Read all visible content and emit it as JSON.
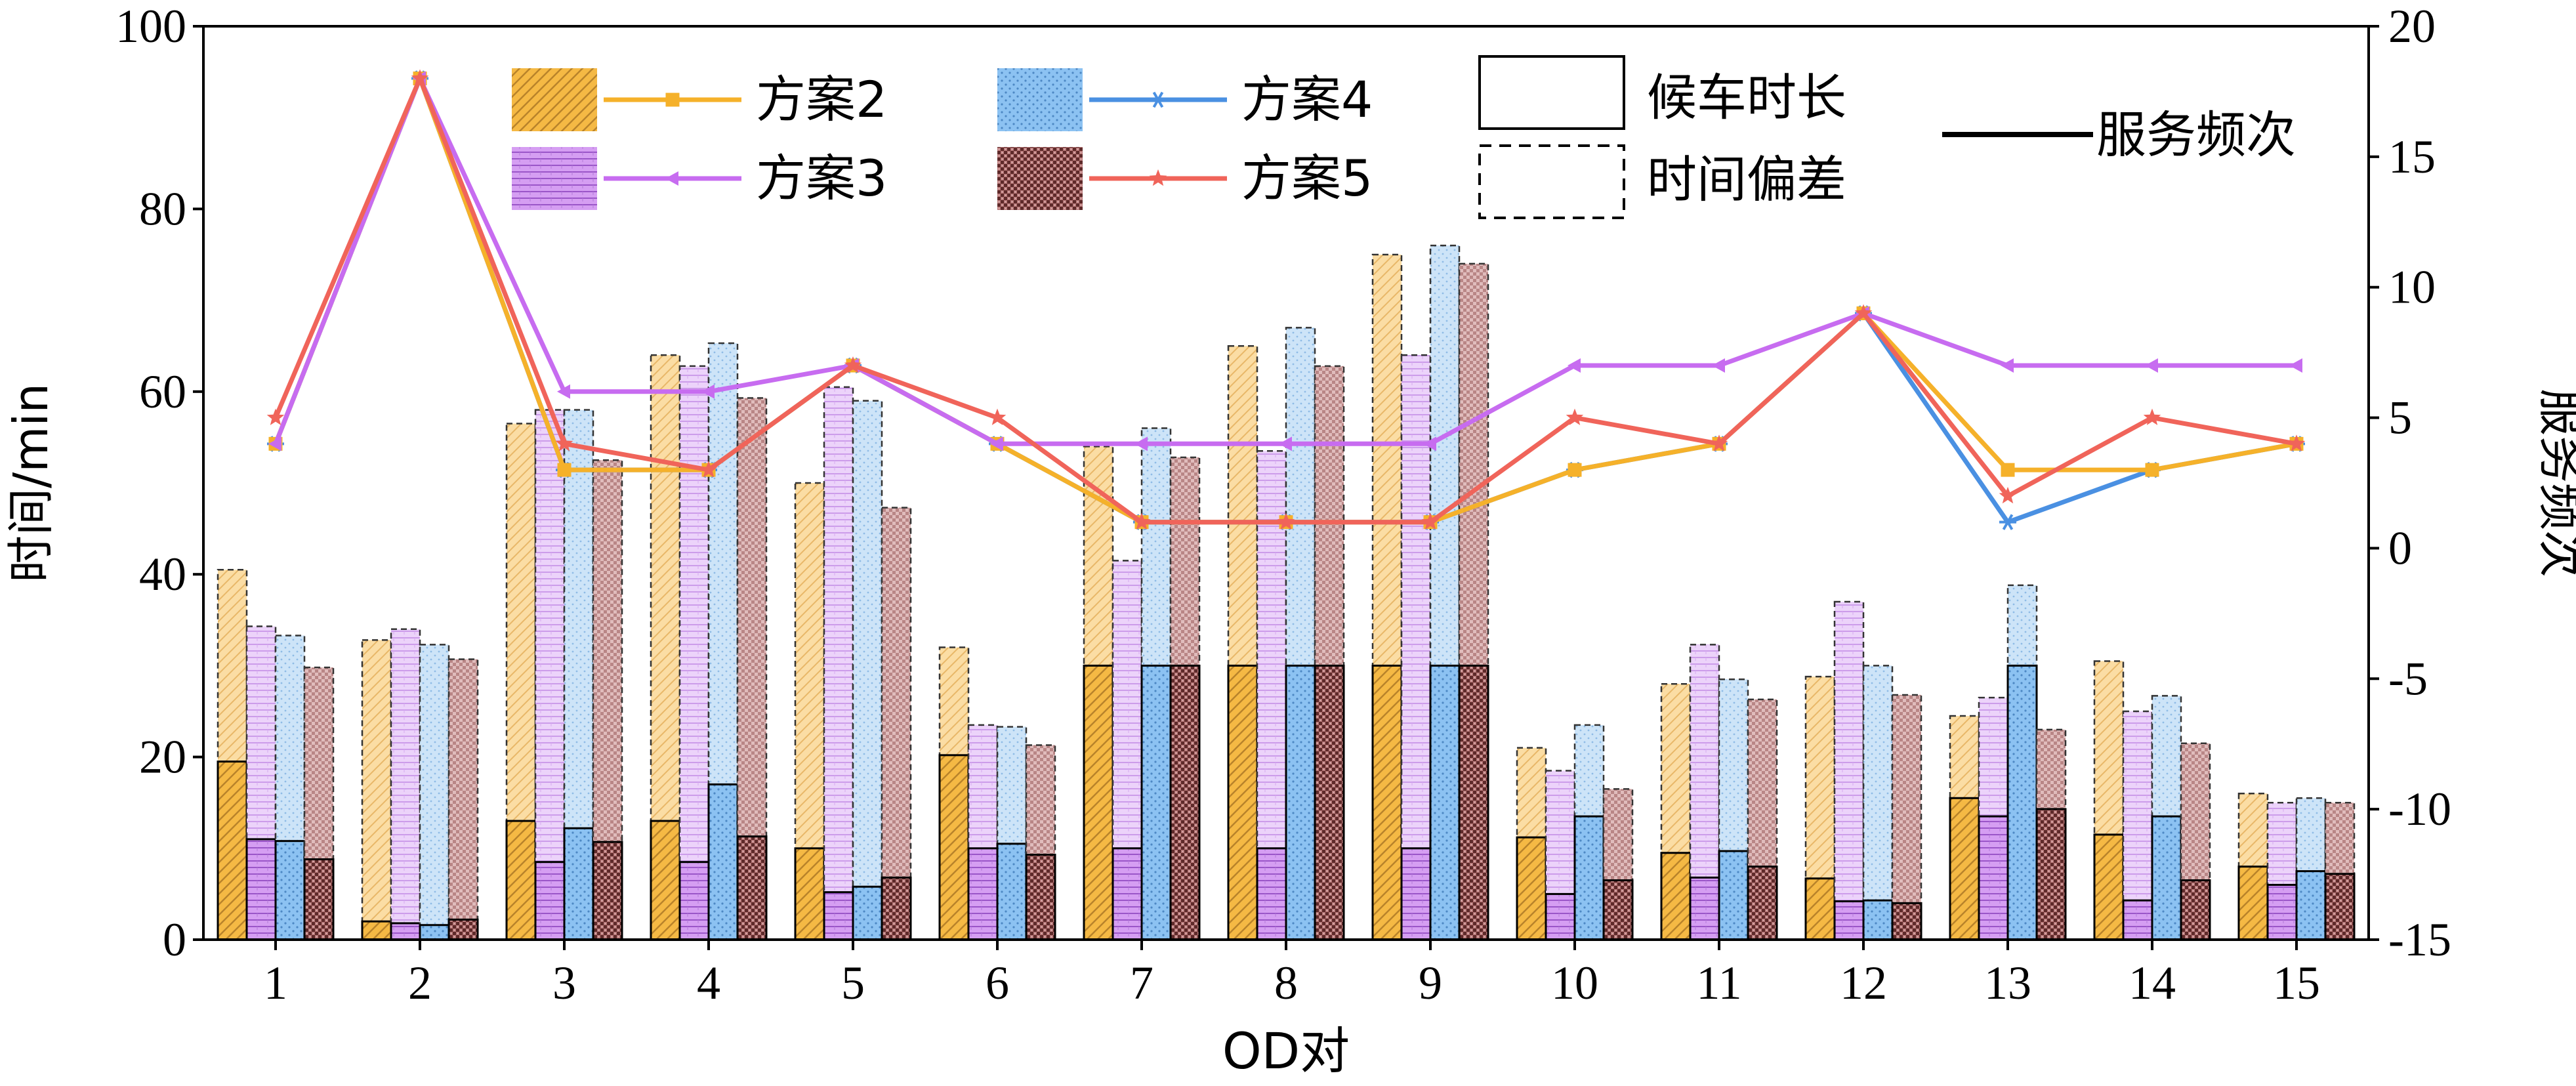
{
  "chart_data": {
    "type": "bar",
    "title": "",
    "xlabel": "OD对",
    "ylabel": "时间/min",
    "y2label": "服务频次",
    "categories": [
      "1",
      "2",
      "3",
      "4",
      "5",
      "6",
      "7",
      "8",
      "9",
      "10",
      "11",
      "12",
      "13",
      "14",
      "15"
    ],
    "ylim": [
      0,
      100
    ],
    "yticks": [
      0,
      20,
      40,
      60,
      80,
      100
    ],
    "y2lim": [
      -15,
      20
    ],
    "y2ticks": [
      -15,
      -10,
      -5,
      0,
      5,
      10,
      15,
      20
    ],
    "grid": false,
    "legend_position": "top",
    "series": [
      {
        "name": "方案2",
        "color": "#f5b944",
        "light_color": "#fbdda4",
        "line_color": "#f5b12a",
        "pattern": "diagonal-hatch",
        "marker": "square",
        "wait_time": [
          19.5,
          2.0,
          13.0,
          13.0,
          10.0,
          20.2,
          30.0,
          30.0,
          30.0,
          11.2,
          9.5,
          6.7,
          15.5,
          11.5,
          8.0
        ],
        "time_deviation": [
          40.5,
          32.8,
          56.5,
          64.0,
          50.0,
          32.0,
          54.0,
          65.0,
          75.0,
          21.0,
          28.0,
          28.8,
          24.5,
          30.5,
          16.0
        ],
        "frequency": [
          4,
          18,
          3,
          3,
          7,
          4,
          1,
          1,
          1,
          3,
          4,
          9,
          3,
          3,
          4
        ]
      },
      {
        "name": "方案3",
        "color": "#d59ef2",
        "light_color": "#ecd3fa",
        "line_color": "#c76cf0",
        "pattern": "horizontal-lines",
        "marker": "triangle-left",
        "wait_time": [
          11.0,
          1.8,
          8.5,
          8.5,
          5.2,
          10.0,
          10.0,
          10.0,
          10.0,
          5.0,
          6.8,
          4.2,
          13.5,
          4.3,
          6.0
        ],
        "time_deviation": [
          34.3,
          34.0,
          58.0,
          62.8,
          60.5,
          23.5,
          41.5,
          53.5,
          64.0,
          18.5,
          32.3,
          37.0,
          26.5,
          25.0,
          15.0
        ],
        "frequency": [
          4,
          18,
          6,
          6,
          7,
          4,
          4,
          4,
          4,
          7,
          7,
          9,
          7,
          7,
          7
        ]
      },
      {
        "name": "方案4",
        "color": "#8cc2f2",
        "light_color": "#cde4f8",
        "line_color": "#4a90e2",
        "pattern": "dots",
        "marker": "asterisk",
        "wait_time": [
          10.8,
          1.6,
          12.2,
          17.0,
          5.8,
          10.5,
          30.0,
          30.0,
          30.0,
          13.5,
          9.7,
          4.3,
          30.0,
          13.5,
          7.5
        ],
        "time_deviation": [
          33.3,
          32.3,
          58.0,
          65.3,
          59.0,
          23.3,
          56.0,
          67.0,
          76.0,
          23.5,
          28.5,
          30.0,
          38.8,
          26.7,
          15.5
        ],
        "frequency": [
          4,
          18,
          3,
          3,
          7,
          4,
          1,
          1,
          1,
          3,
          4,
          9,
          1,
          3,
          4
        ]
      },
      {
        "name": "方案5",
        "color": "#b87878",
        "light_color": "#e0bcbc",
        "line_color": "#f0645a",
        "pattern": "checker",
        "marker": "star",
        "wait_time": [
          8.8,
          2.2,
          10.7,
          11.3,
          6.8,
          9.3,
          30.0,
          30.0,
          30.0,
          6.5,
          8.0,
          4.0,
          14.3,
          6.5,
          7.2
        ],
        "time_deviation": [
          29.8,
          30.7,
          52.5,
          59.3,
          47.3,
          21.3,
          52.8,
          62.8,
          74.0,
          16.5,
          26.3,
          26.8,
          23.0,
          21.5,
          15.0
        ],
        "frequency": [
          5,
          18,
          4,
          3,
          7,
          5,
          1,
          1,
          1,
          5,
          4,
          9,
          2,
          5,
          4
        ]
      }
    ],
    "legend": {
      "wait_time_label": "候车时长",
      "deviation_label": "时间偏差",
      "frequency_label": "服务频次"
    }
  }
}
